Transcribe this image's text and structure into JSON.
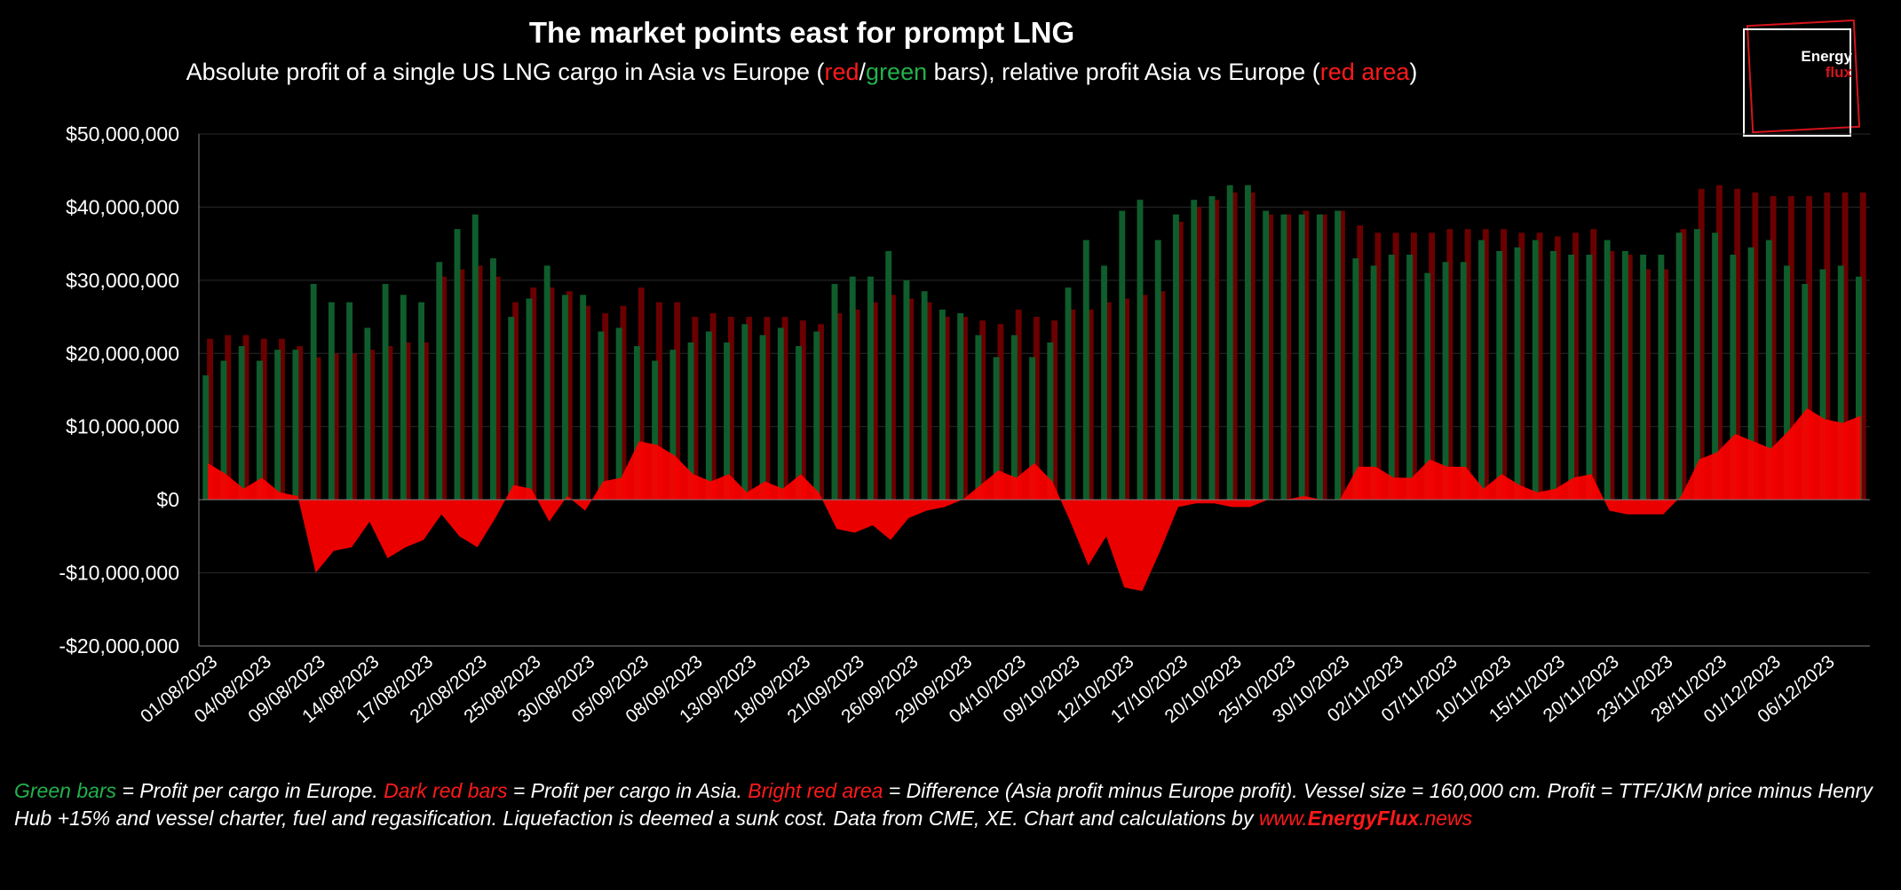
{
  "title": "The market points east for prompt LNG",
  "subtitle": {
    "p1": "Absolute profit of a single US LNG cargo in Asia vs Europe (",
    "red": "red",
    "slash": "/",
    "green": "green",
    "p2": " bars), relative profit Asia vs Europe (",
    "red_area": "red area",
    "p3": ")"
  },
  "logo": {
    "line1": "Energy",
    "line2": "flux"
  },
  "footnote": {
    "green_label": "Green bars",
    "t1": " =  Profit per cargo in Europe. ",
    "dark_label": "Dark red bars",
    "t2": " = Profit per cargo in Asia. ",
    "bright_label": "Bright red area",
    "t3": " = Difference (Asia profit minus Europe profit). Vessel size = 160,000 cm. Profit = TTF/JKM price minus Henry Hub +15% and vessel charter, fuel and regasification. Liquefaction is deemed a sunk cost. Data from CME, XE. Chart and calculations by ",
    "www": "www.",
    "brand": "EnergyFlux",
    "tld": ".news"
  },
  "colors": {
    "europe": "#0f5d2c",
    "asia": "#6b0000",
    "diff": "#ff0000",
    "grid": "#2a2a2a",
    "axis": "#7f7f7f"
  },
  "chart_data": {
    "type": "bar",
    "title": "The market points east for prompt LNG",
    "ylim": [
      -20000000,
      50000000
    ],
    "yticks": [
      -20000000,
      -10000000,
      0,
      10000000,
      20000000,
      30000000,
      40000000,
      50000000
    ],
    "ytick_labels": [
      "-$20,000,000",
      "-$10,000,000",
      "$0",
      "$10,000,000",
      "$20,000,000",
      "$30,000,000",
      "$40,000,000",
      "$50,000,000"
    ],
    "xtick_labels": [
      "01/08/2023",
      "04/08/2023",
      "09/08/2023",
      "14/08/2023",
      "17/08/2023",
      "22/08/2023",
      "25/08/2023",
      "30/08/2023",
      "05/09/2023",
      "08/09/2023",
      "13/09/2023",
      "18/09/2023",
      "21/09/2023",
      "26/09/2023",
      "29/09/2023",
      "04/10/2023",
      "09/10/2023",
      "12/10/2023",
      "17/10/2023",
      "20/10/2023",
      "25/10/2023",
      "30/10/2023",
      "02/11/2023",
      "07/11/2023",
      "10/11/2023",
      "15/11/2023",
      "20/11/2023",
      "23/11/2023",
      "28/11/2023",
      "01/12/2023",
      "06/12/2023"
    ],
    "xtick_every": 3,
    "series": [
      {
        "name": "Profit per cargo in Europe",
        "values": [
          17,
          19,
          21,
          19,
          20.5,
          20.5,
          29.5,
          27,
          27,
          23.5,
          29.5,
          28,
          27,
          32.5,
          37,
          39,
          33,
          25,
          27.5,
          32,
          28,
          28,
          23,
          23.5,
          21,
          19,
          20.5,
          21.5,
          23,
          21.5,
          24,
          22.5,
          23.5,
          21,
          23,
          29.5,
          30.5,
          30.5,
          34,
          30,
          28.5,
          26,
          25.5,
          22.5,
          19.5,
          22.5,
          19.5,
          21.5,
          29,
          35.5,
          32,
          39.5,
          41,
          35.5,
          39,
          41,
          41.5,
          43,
          43,
          39.5,
          39,
          39,
          39,
          39.5,
          33,
          32,
          33.5,
          33.5,
          31,
          32.5,
          32.5,
          35.5,
          34,
          34.5,
          35.5,
          34,
          33.5,
          33.5,
          35.5,
          34,
          33.5,
          33.5,
          36.5,
          37,
          36.5,
          33.5,
          34.5,
          35.5,
          32,
          29.5,
          31.5,
          32,
          30.5
        ]
      },
      {
        "name": "Profit per cargo in Asia",
        "values": [
          22,
          22.5,
          22.5,
          22,
          22,
          21,
          19.5,
          20,
          20,
          20.5,
          21,
          21.5,
          21.5,
          30.5,
          31.5,
          32,
          30.5,
          27,
          29,
          29,
          28.5,
          26.5,
          25.5,
          26.5,
          29,
          27,
          27,
          25,
          25.5,
          25,
          25,
          25,
          25,
          24.5,
          24,
          25.5,
          26,
          27,
          28,
          27.5,
          27,
          25,
          25,
          24.5,
          24,
          26,
          25,
          24.5,
          26,
          26,
          27,
          27.5,
          28,
          28.5,
          38,
          40,
          41,
          42,
          42,
          39,
          39,
          39.5,
          39,
          39.5,
          37.5,
          36.5,
          36.5,
          36.5,
          36.5,
          37,
          37,
          37,
          37,
          36.5,
          36.5,
          36,
          36.5,
          37,
          34,
          33.5,
          31.5,
          31.5,
          37,
          42.5,
          43,
          42.5,
          42,
          41.5,
          41.5,
          41.5,
          42,
          42,
          42
        ]
      },
      {
        "name": "Difference (Asia profit minus Europe profit)",
        "values": [
          5,
          3.5,
          1.5,
          3,
          1,
          0.5,
          -10,
          -7,
          -6.5,
          -3,
          -8,
          -6.5,
          -5.5,
          -2,
          -5,
          -6.5,
          -2.5,
          2,
          1.5,
          -3,
          0.5,
          -1.5,
          2.5,
          3,
          8,
          7.5,
          6,
          3.5,
          2.5,
          3.5,
          1,
          2.5,
          1.5,
          3.5,
          1,
          -4,
          -4.5,
          -3.5,
          -5.5,
          -2.5,
          -1.5,
          -1,
          0,
          2,
          4,
          3,
          5,
          2.5,
          -3,
          -9,
          -5,
          -12,
          -12.5,
          -7,
          -1,
          -0.5,
          -0.5,
          -1,
          -1,
          0,
          0,
          0.5,
          0,
          0,
          4.5,
          4.5,
          3,
          3,
          5.5,
          4.5,
          4.5,
          1.5,
          3.5,
          2,
          1,
          1.5,
          3,
          3.5,
          -1.5,
          -2,
          -2,
          -2,
          0.5,
          5.5,
          6.5,
          9,
          8,
          7,
          9.5,
          12.5,
          11,
          10.5,
          11.5
        ]
      }
    ],
    "value_unit": "millions of USD (values above are in $M)"
  }
}
